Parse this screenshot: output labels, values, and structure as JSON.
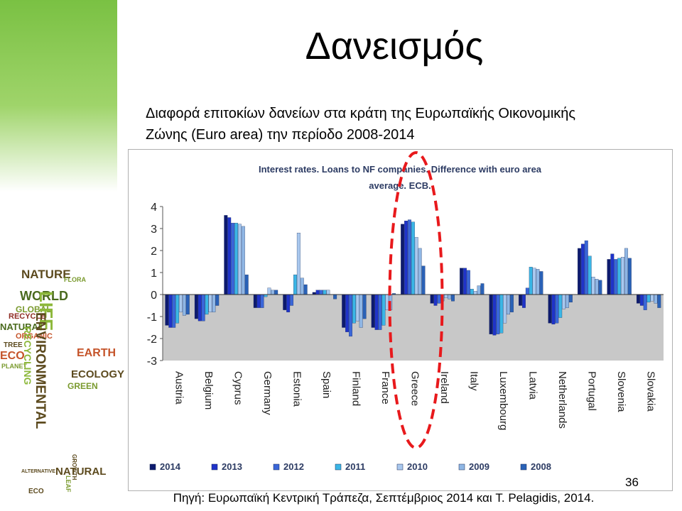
{
  "slide": {
    "title": "Δανεισμός",
    "subtitle_line1": "Διαφορά επιτοκίων δανείων στα κράτη της Ευρωπαϊκής Οικονομικής",
    "subtitle_line2": "Ζώνης  (Euro area) την περίοδο 2008-2014",
    "page_number": "36",
    "source": "Πηγή: Ευρωπαϊκή Κεντρική Τράπεζα, Σεπτέμβριος 2014 και T. Pelagidis, 2014."
  },
  "decoration": {
    "tree_words": [
      "NATURE",
      "WORLD",
      "GLOBAL",
      "RECYCLE",
      "NATURAL",
      "ORGANIC",
      "TREE",
      "ECO",
      "PLANET",
      "LIFE",
      "ENVIRONMENTAL",
      "RECYCLING",
      "EARTH",
      "ECOLOGY",
      "GREEN",
      "NATURAL",
      "GROWTH",
      "LEAF",
      "FLORA",
      "ECO",
      "ALTERNATIVE"
    ]
  },
  "chart_data": {
    "type": "bar",
    "title_line1": "Interest rates. Loans to NF companies. Difference with euro area",
    "title_line2": "average. ECB.",
    "ylim": [
      -3,
      4
    ],
    "yticks": [
      "4",
      "3",
      "2",
      "1",
      "0",
      "-1",
      "-2",
      "-3"
    ],
    "grid": false,
    "legend_position": "bottom",
    "highlight": "Greece",
    "highlight_color": "#e8191c",
    "categories": [
      "Austria",
      "Belgium",
      "Cyprus",
      "Germany",
      "Estonia",
      "Spain",
      "Finland",
      "France",
      "Greece",
      "Ireland",
      "Italy",
      "Luxembourg",
      "Latvia",
      "Netherlands",
      "Portugal",
      "Slovenia",
      "Slovakia"
    ],
    "series": [
      {
        "name": "2014",
        "color": "#0d1a6e",
        "values": [
          -1.4,
          -1.1,
          3.6,
          -0.6,
          -0.7,
          0.1,
          -1.5,
          -1.5,
          3.2,
          -0.4,
          1.2,
          -1.8,
          -0.5,
          -1.3,
          2.1,
          1.6,
          -0.4
        ]
      },
      {
        "name": "2013",
        "color": "#1f33c9",
        "values": [
          -1.5,
          -1.2,
          3.5,
          -0.6,
          -0.8,
          0.2,
          -1.7,
          -1.6,
          3.35,
          -0.5,
          1.2,
          -1.85,
          -0.6,
          -1.35,
          2.3,
          1.85,
          -0.5
        ]
      },
      {
        "name": "2012",
        "color": "#3a66d8",
        "values": [
          -1.5,
          -1.2,
          3.25,
          -0.6,
          -0.5,
          0.2,
          -1.9,
          -1.6,
          3.4,
          -0.4,
          1.1,
          -1.8,
          0.3,
          -1.3,
          2.45,
          1.6,
          -0.7
        ]
      },
      {
        "name": "2011",
        "color": "#3ab6e6",
        "values": [
          -1.3,
          -0.9,
          3.25,
          -0.1,
          0.9,
          0.2,
          -1.3,
          -1.4,
          3.3,
          -0.3,
          0.25,
          -1.75,
          1.25,
          -1.05,
          1.75,
          1.65,
          -0.35
        ]
      },
      {
        "name": "2010",
        "color": "#a9c8ee",
        "values": [
          -0.8,
          -0.8,
          3.2,
          0.3,
          2.8,
          0.2,
          -1.2,
          -0.7,
          2.6,
          -0.15,
          0.15,
          -1.3,
          1.2,
          -0.65,
          0.8,
          1.7,
          -0.3
        ]
      },
      {
        "name": "2009",
        "color": "#8fb6e4",
        "values": [
          -0.95,
          -0.8,
          3.1,
          0.2,
          0.75,
          0.0,
          -1.5,
          -0.7,
          2.1,
          -0.2,
          0.4,
          -0.9,
          1.15,
          -0.6,
          0.7,
          2.1,
          -0.4
        ]
      },
      {
        "name": "2008",
        "color": "#2a62b7",
        "values": [
          -0.9,
          -0.5,
          0.9,
          0.2,
          0.45,
          -0.2,
          -1.1,
          0.05,
          1.3,
          -0.3,
          0.5,
          -0.8,
          1.05,
          -0.35,
          0.65,
          1.65,
          -0.6
        ]
      }
    ]
  }
}
